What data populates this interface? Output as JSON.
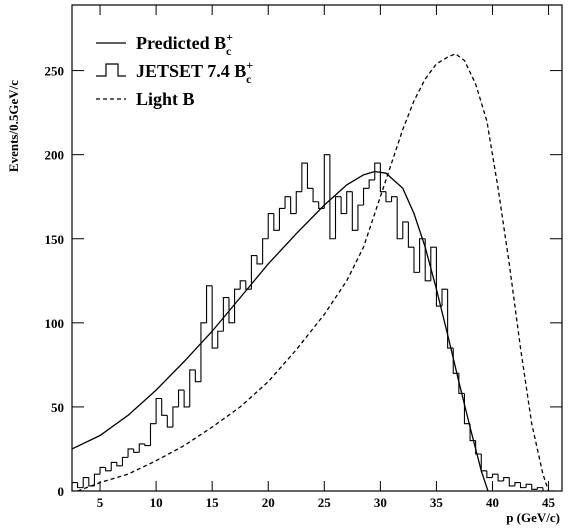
{
  "chart_data": {
    "type": "line",
    "xlabel": "p (GeV/c)",
    "ylabel": "Events/0.5GeV/c",
    "xlim": [
      2.5,
      46.2
    ],
    "ylim": [
      0,
      289
    ],
    "xticks": [
      5,
      10,
      15,
      20,
      25,
      30,
      35,
      40,
      45
    ],
    "yticks": [
      0,
      50,
      100,
      150,
      200,
      250
    ],
    "grid": false,
    "legend": "upper left",
    "series": [
      {
        "type": "line",
        "name": "Predicted B",
        "name_sub": "c",
        "name_sup": "+",
        "color": "#000000",
        "style": "solid",
        "x": [
          2.5,
          5,
          7.5,
          10,
          12.5,
          15,
          17.5,
          20,
          22.5,
          25,
          27,
          28.5,
          29.5,
          30.5,
          32,
          33,
          34,
          35,
          36,
          37,
          38,
          39,
          39.6
        ],
        "values": [
          25,
          33,
          45,
          60,
          77,
          95,
          115,
          135,
          153,
          170,
          182,
          188,
          190,
          189,
          180,
          165,
          145,
          120,
          93,
          65,
          38,
          12,
          0
        ]
      },
      {
        "type": "histogram",
        "name": "JETSET 7.4 B",
        "name_sub": "c",
        "name_sup": "+",
        "color": "#000000",
        "style": "step",
        "bins": [
          2.5,
          3,
          3.5,
          4,
          4.5,
          5,
          5.5,
          6,
          6.5,
          7,
          7.5,
          8,
          8.5,
          9,
          9.5,
          10,
          10.5,
          11,
          11.5,
          12,
          12.5,
          13,
          13.5,
          14,
          14.5,
          15,
          15.5,
          16,
          16.5,
          17,
          17.5,
          18,
          18.5,
          19,
          19.5,
          20,
          20.5,
          21,
          21.5,
          22,
          22.5,
          23,
          23.5,
          24,
          24.5,
          25,
          25.5,
          26,
          26.5,
          27,
          27.5,
          28,
          28.5,
          29,
          29.5,
          30,
          30.5,
          31,
          31.5,
          32,
          32.5,
          33,
          33.5,
          34,
          34.5,
          35,
          35.5,
          36,
          36.5,
          37,
          37.5,
          38,
          38.5,
          39,
          39.5,
          40,
          40.5,
          41,
          41.5,
          42,
          42.5,
          43,
          43.5,
          44,
          44.5,
          45,
          45.5
        ],
        "values": [
          5,
          2,
          8,
          3,
          10,
          14,
          12,
          17,
          15,
          20,
          25,
          23,
          28,
          27,
          40,
          55,
          45,
          38,
          50,
          60,
          50,
          72,
          65,
          100,
          122,
          85,
          95,
          115,
          100,
          120,
          125,
          120,
          140,
          135,
          150,
          165,
          155,
          168,
          175,
          165,
          178,
          195,
          180,
          172,
          168,
          200,
          150,
          175,
          165,
          178,
          155,
          170,
          180,
          185,
          195,
          178,
          172,
          175,
          150,
          160,
          145,
          130,
          150,
          125,
          145,
          110,
          120,
          85,
          70,
          58,
          40,
          30,
          22,
          12,
          8,
          10,
          6,
          8,
          3,
          5,
          2,
          4,
          1,
          2,
          0,
          0
        ]
      },
      {
        "type": "line",
        "name": "Light B",
        "color": "#000000",
        "style": "dash",
        "x": [
          3,
          5,
          7.5,
          10,
          12.5,
          15,
          17.5,
          20,
          22.5,
          25,
          27,
          28.5,
          30,
          31,
          32,
          33,
          34,
          35,
          36,
          36.7,
          37.5,
          38.5,
          39.5,
          40.5,
          41.5,
          42.5,
          43.5,
          44.5,
          45
        ],
        "values": [
          0,
          5,
          10,
          18,
          27,
          38,
          50,
          65,
          84,
          105,
          125,
          145,
          175,
          195,
          215,
          232,
          245,
          254,
          258,
          260,
          256,
          242,
          220,
          180,
          135,
          85,
          40,
          10,
          0
        ]
      }
    ]
  }
}
